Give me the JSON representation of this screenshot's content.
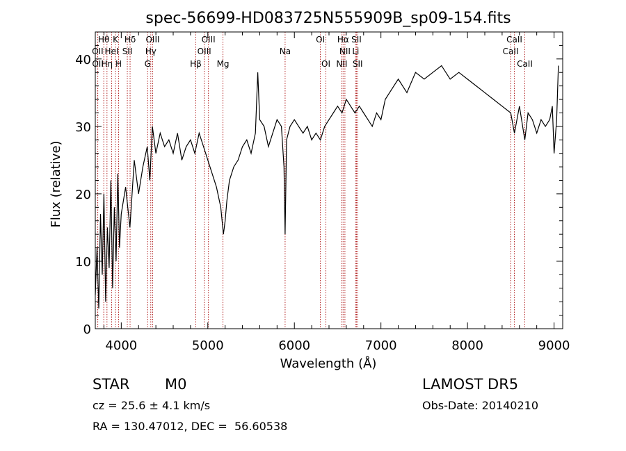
{
  "chart_data": {
    "type": "line",
    "title": "spec-56699-HD083725N555909B_sp09-154.fits",
    "xlabel": "Wavelength (Å)",
    "ylabel": "Flux (relative)",
    "xlim": [
      3700,
      9100
    ],
    "ylim": [
      0,
      44
    ],
    "x_ticks": [
      4000,
      5000,
      6000,
      7000,
      8000,
      9000
    ],
    "y_ticks": [
      0,
      10,
      20,
      30,
      40
    ],
    "grid": false,
    "line_color": "#000000",
    "marker_color": "#b22222",
    "series": [
      {
        "x": [
          3700,
          3720,
          3740,
          3760,
          3780,
          3800,
          3820,
          3840,
          3860,
          3880,
          3900,
          3920,
          3940,
          3960,
          3980,
          4000,
          4050,
          4100,
          4150,
          4200,
          4250,
          4300,
          4330,
          4360,
          4400,
          4450,
          4500,
          4550,
          4600,
          4650,
          4700,
          4750,
          4800,
          4850,
          4900,
          4950,
          5000,
          5050,
          5100,
          5150,
          5180,
          5200,
          5220,
          5250,
          5300,
          5350,
          5400,
          5450,
          5500,
          5550,
          5577,
          5600,
          5650,
          5700,
          5750,
          5800,
          5850,
          5880,
          5893,
          5910,
          5950,
          6000,
          6050,
          6100,
          6150,
          6200,
          6250,
          6300,
          6350,
          6400,
          6450,
          6500,
          6550,
          6600,
          6650,
          6700,
          6750,
          6800,
          6850,
          6900,
          6950,
          7000,
          7050,
          7100,
          7150,
          7200,
          7300,
          7400,
          7500,
          7600,
          7700,
          7800,
          7900,
          8000,
          8100,
          8200,
          8300,
          8400,
          8500,
          8542,
          8600,
          8662,
          8700,
          8750,
          8800,
          8850,
          8900,
          8950,
          8980,
          9000,
          9030,
          9050
        ],
        "y": [
          5,
          12,
          3,
          17,
          8,
          20,
          4,
          15,
          9,
          22,
          6,
          18,
          10,
          23,
          12,
          17,
          21,
          15,
          25,
          20,
          24,
          27,
          22,
          30,
          26,
          29,
          27,
          28,
          26,
          29,
          25,
          27,
          28,
          26,
          29,
          27,
          25,
          23,
          21,
          18,
          14,
          16,
          19,
          22,
          24,
          25,
          27,
          28,
          26,
          29,
          38,
          31,
          30,
          27,
          29,
          31,
          30,
          24,
          14,
          28,
          30,
          31,
          30,
          29,
          30,
          28,
          29,
          28,
          30,
          31,
          32,
          33,
          32,
          34,
          33,
          32,
          33,
          32,
          31,
          30,
          32,
          31,
          34,
          35,
          36,
          37,
          35,
          38,
          37,
          38,
          39,
          37,
          38,
          37,
          36,
          35,
          34,
          33,
          32,
          29,
          33,
          28,
          32,
          31,
          29,
          31,
          30,
          31,
          33,
          26,
          31,
          39
        ]
      }
    ],
    "line_markers": [
      {
        "label": "Hθ",
        "x": 3798,
        "row": 0
      },
      {
        "label": "K",
        "x": 3934,
        "row": 0
      },
      {
        "label": "Hδ",
        "x": 4102,
        "row": 0
      },
      {
        "label": "OIII",
        "x": 4363,
        "row": 0
      },
      {
        "label": "OIII",
        "x": 5007,
        "row": 0
      },
      {
        "label": "OI",
        "x": 6300,
        "row": 0
      },
      {
        "label": "Hα",
        "x": 6563,
        "row": 0
      },
      {
        "label": "SII",
        "x": 6717,
        "row": 0
      },
      {
        "label": "CaII",
        "x": 8542,
        "row": 0
      },
      {
        "label": "OII",
        "x": 3727,
        "row": 1
      },
      {
        "label": "HeI",
        "x": 3889,
        "row": 1
      },
      {
        "label": "SII",
        "x": 4070,
        "row": 1
      },
      {
        "label": "Hγ",
        "x": 4341,
        "row": 1
      },
      {
        "label": "OIII",
        "x": 4959,
        "row": 1
      },
      {
        "label": "Na",
        "x": 5893,
        "row": 1
      },
      {
        "label": "NII",
        "x": 6584,
        "row": 1
      },
      {
        "label": "Li",
        "x": 6708,
        "row": 1
      },
      {
        "label": "CaII",
        "x": 8498,
        "row": 1
      },
      {
        "label": "OII",
        "x": 3729,
        "row": 2
      },
      {
        "label": "Hη",
        "x": 3835,
        "row": 2
      },
      {
        "label": "H",
        "x": 3969,
        "row": 2
      },
      {
        "label": "G",
        "x": 4305,
        "row": 2
      },
      {
        "label": "Hβ",
        "x": 4861,
        "row": 2
      },
      {
        "label": "Mg",
        "x": 5175,
        "row": 2
      },
      {
        "label": "OI",
        "x": 6364,
        "row": 2
      },
      {
        "label": "NII",
        "x": 6548,
        "row": 2
      },
      {
        "label": "SII",
        "x": 6731,
        "row": 2
      },
      {
        "label": "CaII",
        "x": 8662,
        "row": 2
      }
    ]
  },
  "info": {
    "object_class": "STAR",
    "subclass": "M0",
    "survey": "LAMOST DR5",
    "cz": "cz = 25.6 ± 4.1 km/s",
    "obs_date": "Obs-Date: 20140210",
    "coords": "RA = 130.47012, DEC =  56.60538"
  }
}
